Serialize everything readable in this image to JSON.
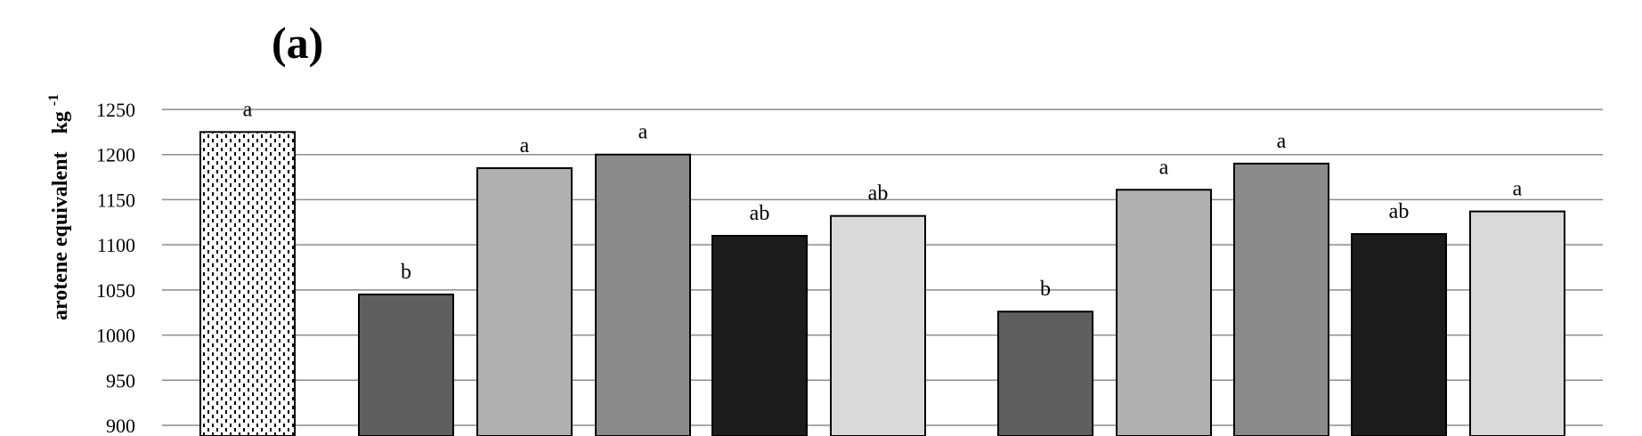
{
  "chart_data": {
    "type": "bar",
    "panel_label": "(a)",
    "ylabel": "arotene equivalent",
    "ylabel_unit_base": "kg",
    "ylabel_unit_exp": "-1",
    "ylim": [
      900,
      1250
    ],
    "yticks": [
      900,
      950,
      1000,
      1050,
      1100,
      1150,
      1200,
      1250
    ],
    "grid": true,
    "bars": [
      {
        "value": 1225,
        "label": "a",
        "color": "#ffffff",
        "pattern": "dots"
      },
      {
        "value": 1045,
        "label": "b",
        "color": "#5f5f5f"
      },
      {
        "value": 1185,
        "label": "a",
        "color": "#b0b0b0"
      },
      {
        "value": 1200,
        "label": "a",
        "color": "#8a8a8a"
      },
      {
        "value": 1110,
        "label": "ab",
        "color": "#1c1c1c"
      },
      {
        "value": 1132,
        "label": "ab",
        "color": "#d9d9d9"
      },
      {
        "value": 1026,
        "label": "b",
        "color": "#5f5f5f"
      },
      {
        "value": 1161,
        "label": "a",
        "color": "#b0b0b0"
      },
      {
        "value": 1190,
        "label": "a",
        "color": "#8a8a8a"
      },
      {
        "value": 1112,
        "label": "ab",
        "color": "#1c1c1c"
      },
      {
        "value": 1137,
        "label": "a",
        "color": "#d9d9d9"
      }
    ]
  }
}
